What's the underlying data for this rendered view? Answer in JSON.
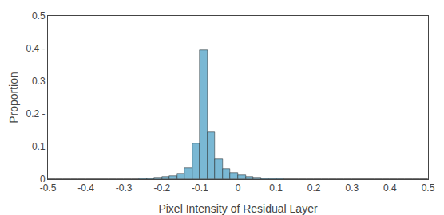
{
  "chart_data": {
    "type": "bar",
    "title": "",
    "xlabel": "Pixel Intensity of Residual Layer",
    "ylabel": "Proportion",
    "x": [
      -0.49,
      -0.47,
      -0.45,
      -0.43,
      -0.41,
      -0.39,
      -0.37,
      -0.35,
      -0.33,
      -0.31,
      -0.29,
      -0.27,
      -0.25,
      -0.23,
      -0.21,
      -0.19,
      -0.17,
      -0.15,
      -0.13,
      -0.11,
      -0.09,
      -0.07,
      -0.05,
      -0.03,
      -0.01,
      0.01,
      0.03,
      0.05,
      0.07,
      0.09,
      0.11,
      0.13,
      0.15,
      0.17,
      0.19,
      0.21,
      0.23,
      0.25,
      0.27,
      0.29,
      0.31,
      0.33,
      0.35,
      0.37,
      0.39,
      0.41,
      0.43,
      0.45,
      0.47,
      0.49
    ],
    "values": [
      0.0005,
      0.0005,
      0.0005,
      0.0005,
      0.0005,
      0.0005,
      0.0005,
      0.0005,
      0.0005,
      0.001,
      0.001,
      0.001,
      0.002,
      0.003,
      0.005,
      0.007,
      0.01,
      0.018,
      0.035,
      0.11,
      0.395,
      0.145,
      0.06,
      0.032,
      0.02,
      0.013,
      0.007,
      0.005,
      0.003,
      0.002,
      0.002,
      0.001,
      0.001,
      0.001,
      0.0008,
      0.0008,
      0.0005,
      0.0005,
      0.0005,
      0.0005,
      0.0003,
      0.0003,
      0.0002,
      0.0002,
      0.0002,
      0.0001,
      0.0001,
      0.0001,
      0.0001,
      0.0001
    ],
    "color": "#7ab8d4",
    "xlim": [
      -0.5,
      0.5
    ],
    "ylim": [
      0,
      0.5
    ],
    "xticks": [
      -0.5,
      -0.4,
      -0.3,
      -0.2,
      -0.1,
      0,
      0.1,
      0.2,
      0.3,
      0.4,
      0.5
    ],
    "yticks": [
      0,
      0.1,
      {
        "value": 0.2,
        "label": "0.2 -"
      },
      0.3,
      {
        "value": 0.4,
        "label": "0.4 -"
      },
      0.5
    ],
    "grid": false
  }
}
